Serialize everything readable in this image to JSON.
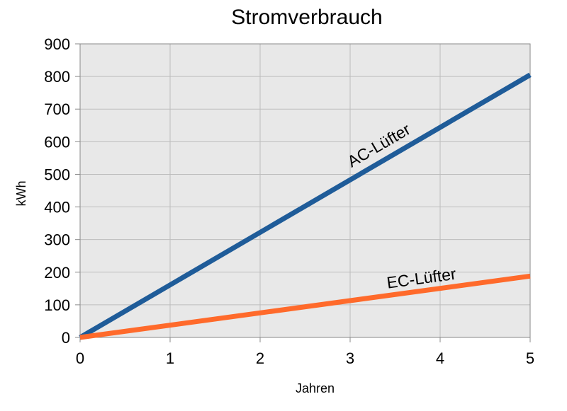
{
  "chart_data": {
    "type": "line",
    "title": "Stromverbrauch",
    "xlabel": "Jahren",
    "ylabel": "kWh",
    "xlim": [
      0,
      5
    ],
    "ylim": [
      0,
      900
    ],
    "x_ticks": [
      "0",
      "1",
      "2",
      "3",
      "4",
      "5"
    ],
    "y_ticks": [
      "0",
      "100",
      "200",
      "300",
      "400",
      "500",
      "600",
      "700",
      "800",
      "900"
    ],
    "grid": true,
    "series": [
      {
        "name": "AC-Lüfter",
        "x": [
          0,
          5
        ],
        "y": [
          0,
          805
        ],
        "color": "#1f5c99"
      },
      {
        "name": "EC-Lüfter",
        "x": [
          0,
          5
        ],
        "y": [
          0,
          188
        ],
        "color": "#ff6a2b"
      }
    ],
    "colors": {
      "plot_background": "#e8e8e8",
      "gridline": "#bdbdbd"
    }
  }
}
